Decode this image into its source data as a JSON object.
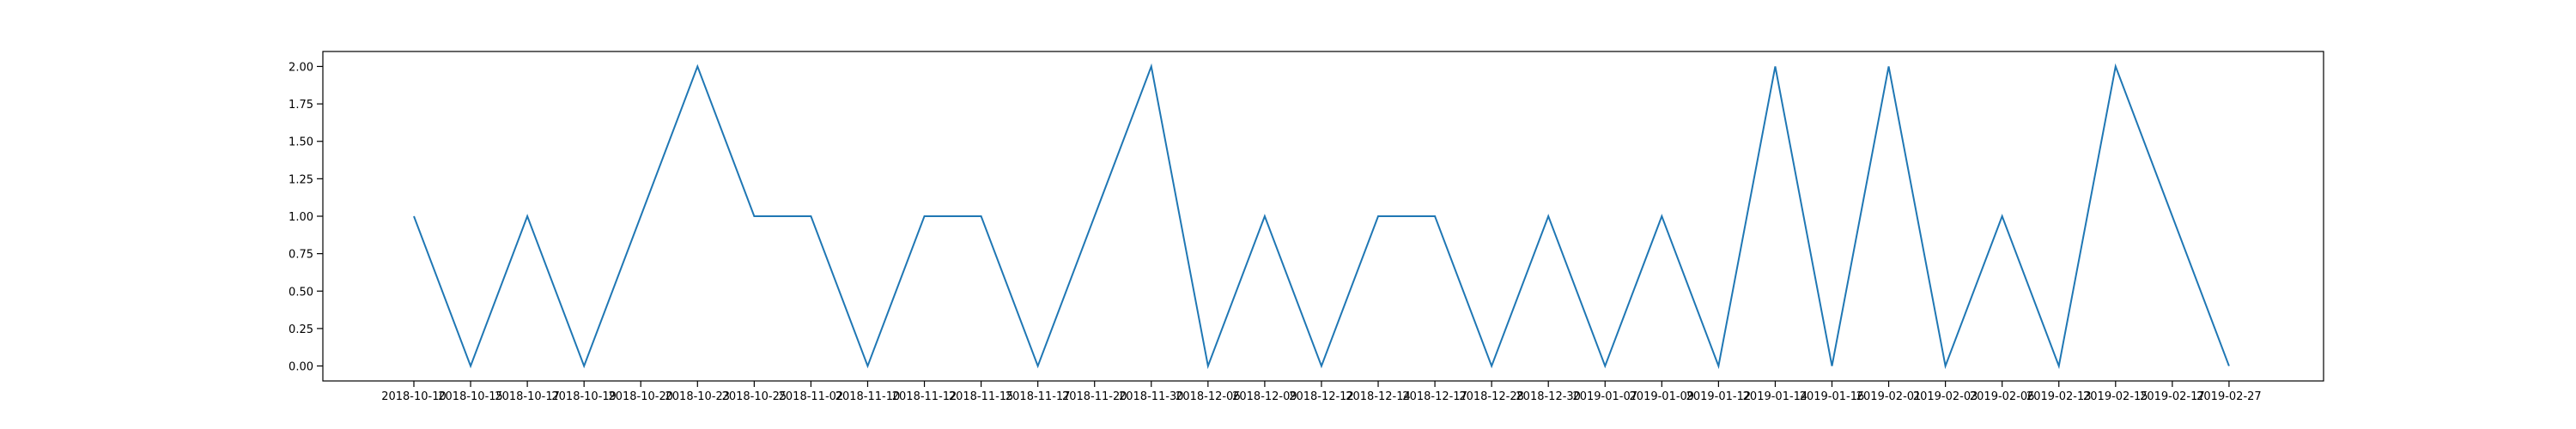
{
  "chart_data": {
    "type": "line",
    "title": "",
    "xlabel": "",
    "ylabel": "",
    "categories": [
      "2018-10-10",
      "2018-10-15",
      "2018-10-17",
      "2018-10-19",
      "2018-10-20",
      "2018-10-23",
      "2018-10-25",
      "2018-11-02",
      "2018-11-10",
      "2018-11-12",
      "2018-11-15",
      "2018-11-17",
      "2018-11-20",
      "2018-11-30",
      "2018-12-06",
      "2018-12-09",
      "2018-12-12",
      "2018-12-14",
      "2018-12-17",
      "2018-12-28",
      "2018-12-30",
      "2019-01-07",
      "2019-01-09",
      "2019-01-12",
      "2019-01-14",
      "2019-01-16",
      "2019-02-01",
      "2019-02-03",
      "2019-02-06",
      "2019-02-13",
      "2019-02-15",
      "2019-02-17",
      "2019-02-27"
    ],
    "series": [
      {
        "values": [
          1,
          0,
          1,
          0,
          1,
          2,
          1,
          1,
          0,
          1,
          1,
          0,
          1,
          2,
          0,
          1,
          0,
          1,
          1,
          0,
          1,
          0,
          1,
          0,
          2,
          0,
          2,
          0,
          1,
          0,
          2,
          1,
          0
        ],
        "color": "#1f77b4"
      }
    ],
    "yticks": [
      "0.00",
      "0.25",
      "0.50",
      "0.75",
      "1.00",
      "1.25",
      "1.50",
      "1.75",
      "2.00"
    ],
    "ylim": [
      -0.1,
      2.1
    ],
    "grid": false,
    "legend": "none"
  }
}
